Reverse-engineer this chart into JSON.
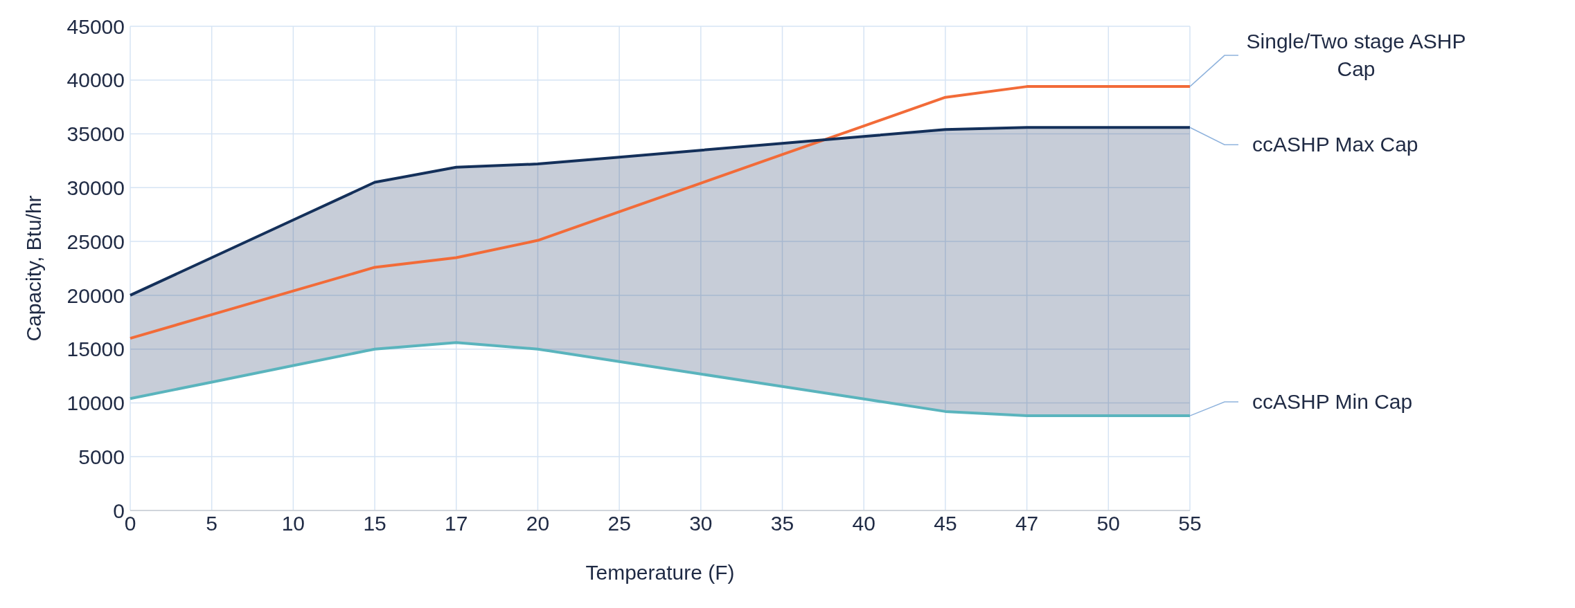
{
  "chart_data": {
    "type": "line",
    "xlabel": "Temperature (F)",
    "ylabel": "Capacity, Btu/hr",
    "categories": [
      "0",
      "5",
      "10",
      "15",
      "17",
      "20",
      "25",
      "30",
      "35",
      "40",
      "45",
      "47",
      "50",
      "55"
    ],
    "series": [
      {
        "name": "Single/Two stage ASHP Cap",
        "color": "#f26b38",
        "values": [
          16000,
          18200,
          20400,
          22600,
          23500,
          25100,
          27760,
          30420,
          33080,
          35740,
          38400,
          39400,
          39400,
          39400
        ]
      },
      {
        "name": "ccASHP Max Cap",
        "color": "#14305a",
        "values": [
          20000,
          23500,
          27000,
          30500,
          31900,
          32200,
          32840,
          33480,
          34120,
          34760,
          35400,
          35600,
          35600,
          35600
        ],
        "lower": [
          10400,
          11930,
          13470,
          15000,
          15600,
          15000,
          13840,
          12680,
          11520,
          10360,
          9200,
          8800,
          8800,
          8800
        ],
        "upper": [
          20000,
          23500,
          27000,
          30500,
          31900,
          32200,
          32840,
          33480,
          34120,
          34760,
          35400,
          35600,
          35600,
          35600
        ]
      },
      {
        "name": "ccASHP Min Cap",
        "color": "#5ab4bd",
        "values": [
          10400,
          11930,
          13470,
          15000,
          15600,
          15000,
          13840,
          12680,
          11520,
          10360,
          9200,
          8800,
          8800,
          8800
        ]
      }
    ],
    "ylim": [
      0,
      45000
    ],
    "yticks": [
      0,
      5000,
      10000,
      15000,
      20000,
      25000,
      30000,
      35000,
      40000,
      45000
    ],
    "grid": true,
    "legend": false,
    "marker": "none",
    "line_style": "solid"
  }
}
